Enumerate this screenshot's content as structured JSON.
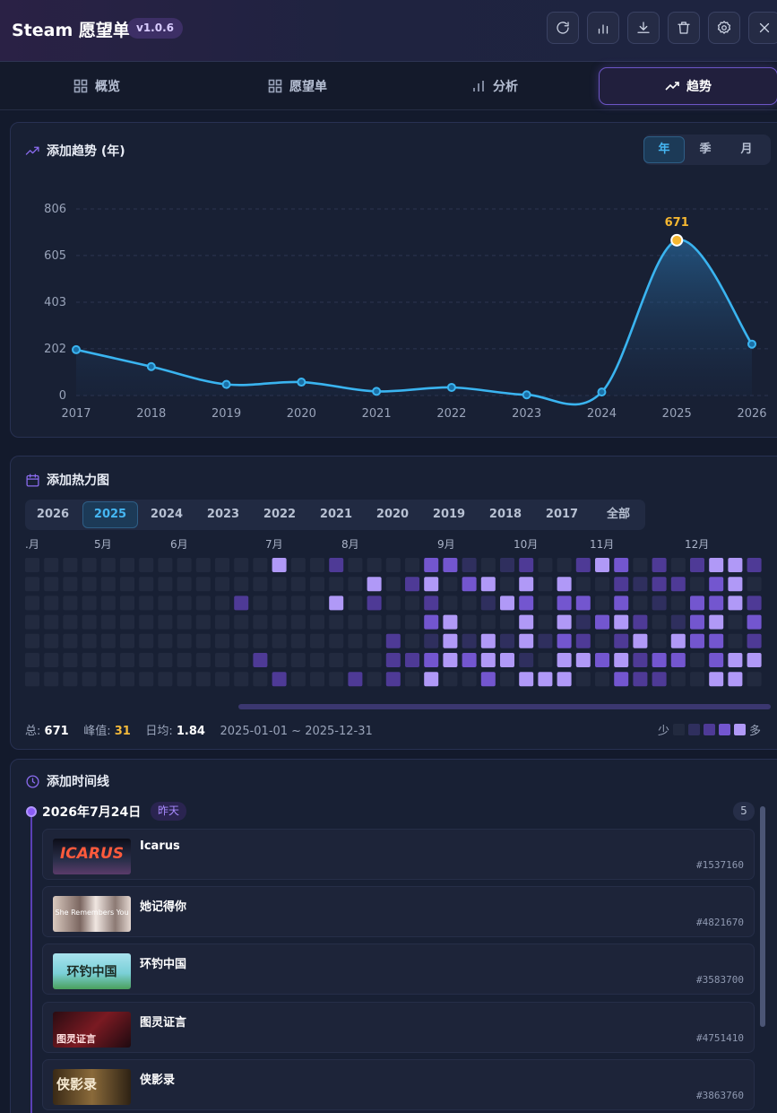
{
  "header": {
    "title": "Steam 愿望单",
    "version": "v1.0.6",
    "buttons": [
      "refresh-icon",
      "stats-icon",
      "download-icon",
      "trash-icon",
      "gear-icon",
      "close-icon"
    ]
  },
  "tabs": [
    {
      "label": "概览",
      "icon": "grid-icon",
      "active": false
    },
    {
      "label": "愿望单",
      "icon": "grid-icon",
      "active": false
    },
    {
      "label": "分析",
      "icon": "bar-chart-icon",
      "active": false
    },
    {
      "label": "趋势",
      "icon": "trend-icon",
      "active": true
    }
  ],
  "trend": {
    "title": "添加趋势 (年)",
    "periods": [
      "年",
      "季",
      "月"
    ],
    "active_period": "年"
  },
  "chart_data": {
    "type": "line",
    "x": [
      "2017",
      "2018",
      "2019",
      "2020",
      "2021",
      "2022",
      "2023",
      "2024",
      "2025",
      "2026"
    ],
    "values": [
      198,
      125,
      48,
      58,
      18,
      35,
      3,
      15,
      671,
      222
    ],
    "yticks": [
      "0",
      "202",
      "403",
      "605",
      "806"
    ],
    "ylim": [
      0,
      806
    ],
    "highlight_label": "671",
    "grid": true,
    "area": true,
    "line_color": "#3ab4f0",
    "highlight_color": "#f5b731"
  },
  "heatmap": {
    "title": "添加热力图",
    "years": [
      "2026",
      "2025",
      "2024",
      "2023",
      "2022",
      "2021",
      "2020",
      "2019",
      "2018",
      "2017",
      "全部"
    ],
    "active_year": "2025",
    "month_labels": [
      ".月",
      "5月",
      "6月",
      "7月",
      "8月",
      "9月",
      "10月",
      "11月",
      "12月"
    ],
    "stats_total_label": "总:",
    "stats_total": "671",
    "stats_peak_label": "峰值:",
    "stats_peak": "31",
    "stats_avg_label": "日均:",
    "stats_avg": "1.84",
    "range": "2025-01-01 ~ 2025-12-31",
    "legend_less": "少",
    "legend_more": "多",
    "legend_colors": [
      "#222a3f",
      "#2f2f5e",
      "#4e3a96",
      "#7356cf",
      "#b099f7"
    ]
  },
  "timeline": {
    "title": "添加时间线",
    "date": "2026年7月24日",
    "badge": "昨天",
    "count": "5",
    "items": [
      {
        "name": "Icarus",
        "id": "#1537160",
        "thumb": "ICARUS"
      },
      {
        "name": "她记得你",
        "id": "#4821670",
        "thumb": "She Remembers You"
      },
      {
        "name": "环钓中国",
        "id": "#3583700",
        "thumb": "环钓中国"
      },
      {
        "name": "图灵证言",
        "id": "#4751410",
        "thumb": "图灵证言"
      },
      {
        "name": "侠影录",
        "id": "#3863760",
        "thumb": "侠影录"
      }
    ]
  }
}
